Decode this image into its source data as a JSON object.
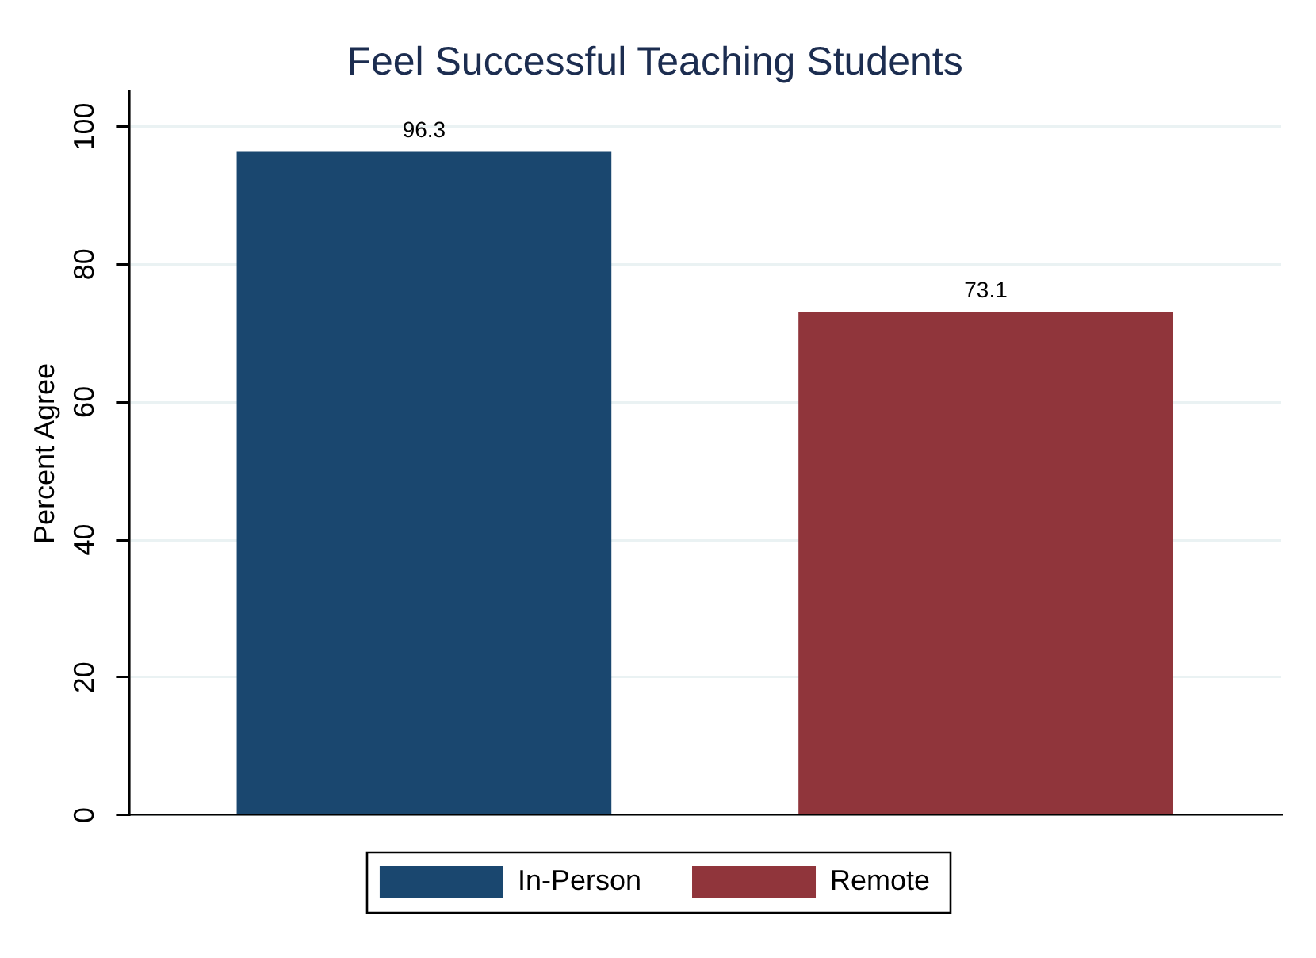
{
  "chart_data": {
    "type": "bar",
    "title": "Feel Successful Teaching Students",
    "ylabel": "Percent Agree",
    "categories": [
      null
    ],
    "series": [
      {
        "name": "In-Person",
        "color": "#1a476f",
        "values": [
          96.3
        ]
      },
      {
        "name": "Remote",
        "color": "#90353b",
        "values": [
          73.1
        ]
      }
    ],
    "ylim": [
      0,
      105
    ],
    "yticks": [
      0,
      20,
      40,
      60,
      80,
      100
    ],
    "grid": "y",
    "legend": "bottom",
    "data_labels": true
  }
}
